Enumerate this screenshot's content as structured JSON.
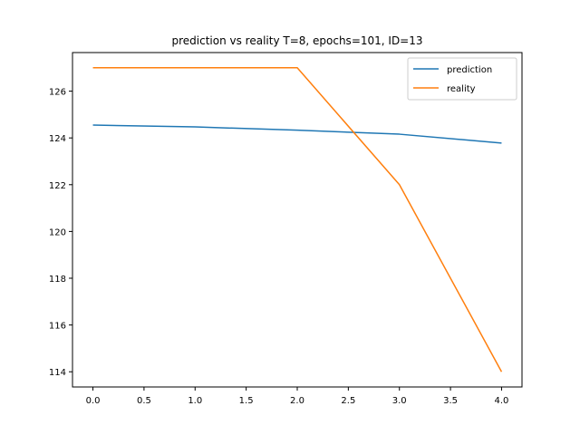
{
  "chart_data": {
    "type": "line",
    "title": "prediction vs reality T=8, epochs=101, ID=13",
    "xlabel": "",
    "ylabel": "",
    "x": [
      0,
      1,
      2,
      3,
      4
    ],
    "series": [
      {
        "name": "prediction",
        "color": "#1f77b4",
        "values": [
          124.55,
          124.47,
          124.33,
          124.16,
          123.78
        ]
      },
      {
        "name": "reality",
        "color": "#ff7f0e",
        "values": [
          127,
          127,
          127,
          122,
          114
        ]
      }
    ],
    "xlim": [
      -0.2,
      4.2
    ],
    "ylim": [
      113.35,
      127.65
    ],
    "xticks": [
      0,
      0.5,
      1,
      1.5,
      2,
      2.5,
      3,
      3.5,
      4
    ],
    "xtick_labels": [
      "0.0",
      "0.5",
      "1.0",
      "1.5",
      "2.0",
      "2.5",
      "3.0",
      "3.5",
      "4.0"
    ],
    "yticks": [
      114,
      116,
      118,
      120,
      122,
      124,
      126
    ],
    "ytick_labels": [
      "114",
      "116",
      "118",
      "120",
      "122",
      "124",
      "126"
    ],
    "grid": false,
    "legend": "top-right"
  }
}
